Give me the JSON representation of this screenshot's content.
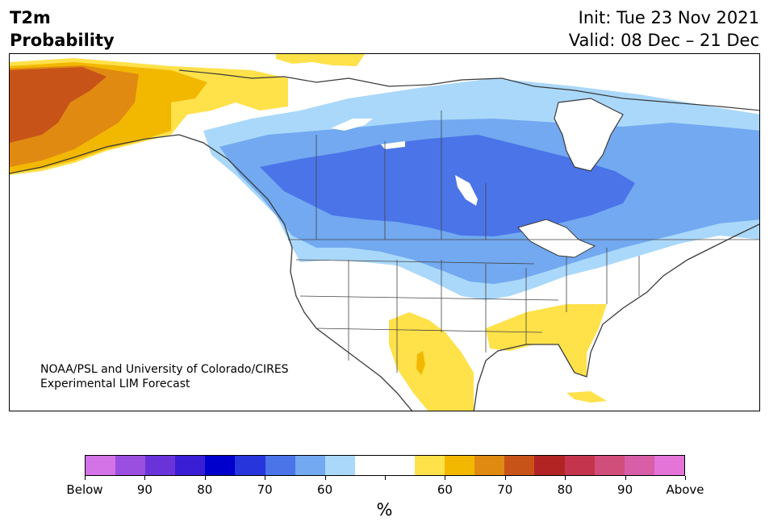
{
  "header": {
    "title_line1": "T2m",
    "title_line2": "Probability",
    "init": "Init: Tue 23 Nov 2021",
    "valid": "Valid: 08 Dec – 21 Dec"
  },
  "credit": {
    "line1": "NOAA/PSL and University of Colorado/CIRES",
    "line2": "Experimental LIM Forecast"
  },
  "colorbar": {
    "colors": [
      "#d472e8",
      "#9a4fe0",
      "#6a33d9",
      "#3a1ed6",
      "#0000cc",
      "#2636dc",
      "#4a74e8",
      "#72a9f0",
      "#aad8fa",
      "#ffffff",
      "#ffffff",
      "#ffe14a",
      "#f2b800",
      "#e08a12",
      "#c85318",
      "#b22424",
      "#c4354d",
      "#d14d7a",
      "#d85ea8",
      "#e474d8"
    ],
    "labels": [
      "Below",
      "90",
      "80",
      "70",
      "60",
      "60",
      "70",
      "80",
      "90",
      "Above"
    ],
    "unit": "%"
  },
  "map": {
    "region": "North America",
    "palette": {
      "cold_60": "#aad8fa",
      "cold_65": "#72a9f0",
      "cold_70": "#4a74e8",
      "warm_60": "#ffe14a",
      "warm_65": "#f2b800",
      "warm_70": "#e08a12",
      "warm_75": "#c85318",
      "coast": "#3a3a3a"
    }
  }
}
